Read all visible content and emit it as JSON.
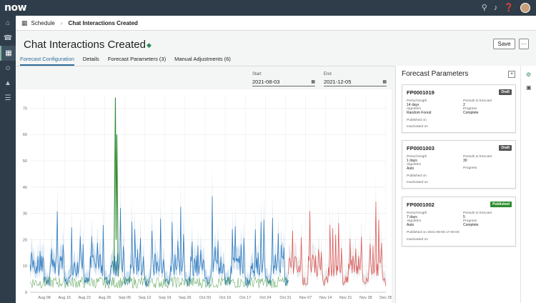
{
  "app": {
    "logo_text": "now"
  },
  "topbar": {
    "icons": [
      "search-icon",
      "bell-icon",
      "help-icon",
      "avatar"
    ]
  },
  "leftnav": {
    "icons": [
      "home-icon",
      "headset-icon",
      "calendar-icon",
      "people-icon",
      "graduation-icon",
      "list-icon"
    ],
    "active_index": 2
  },
  "breadcrumb": {
    "root": "Schedule",
    "current": "Chat Interactions Created"
  },
  "header": {
    "title": "Chat Interactions Created",
    "save_label": "Save",
    "more_label": "···"
  },
  "tabs": [
    {
      "label": "Forecast Configuration",
      "active": true
    },
    {
      "label": "Details",
      "active": false
    },
    {
      "label": "Forecast Parameters (3)",
      "active": false
    },
    {
      "label": "Manual Adjustments (6)",
      "active": false
    }
  ],
  "date_range": {
    "start_label": "Start",
    "start_value": "2021-08-03",
    "end_label": "End",
    "end_value": "2021-12-05"
  },
  "chart_data": {
    "type": "line",
    "title": "",
    "xlabel": "",
    "ylabel": "",
    "ylim": [
      0,
      75
    ],
    "yticks": [
      0,
      10,
      20,
      30,
      40,
      50,
      60,
      70
    ],
    "x_ticks": [
      "Aug 08",
      "Aug 15",
      "Aug 22",
      "Aug 29",
      "Sep 05",
      "Sep 12",
      "Sep 19",
      "Sep 26",
      "Oct 03",
      "Oct 10",
      "Oct 17",
      "Oct 24",
      "Oct 31",
      "Nov 07",
      "Nov 14",
      "Nov 21",
      "Nov 28",
      "Dec 05"
    ],
    "x_range": [
      "2021-08-03",
      "2021-12-05"
    ],
    "grid": true,
    "series": [
      {
        "color": "#2f7bbf",
        "weekly_peaks": [
          30,
          35,
          34,
          38,
          35,
          30,
          37,
          38,
          40,
          37,
          38,
          38,
          37,
          36
        ],
        "baseline": 6
      },
      {
        "color": "#2e8b2e",
        "spike_date": "2021-09-02",
        "spike_value": 74,
        "baseline": 5
      },
      {
        "color": "#e05a5a",
        "weekly_peaks": [
          40,
          40,
          42,
          37,
          40
        ],
        "baseline": 6
      }
    ],
    "band_color": "#a9c9e6"
  },
  "panel": {
    "title": "Forecast Parameters",
    "add_label": "+",
    "cards": [
      {
        "code": "FP0001019",
        "badge": "Draft",
        "badge_color": "#555555",
        "period_length_label": "Period length",
        "period_length": "14 days",
        "periods_label": "Periods to forecast",
        "periods": "2",
        "algorithm_label": "Algorithm",
        "algorithm": "Random Forest",
        "progress_label": "Progress",
        "progress": "Complete",
        "published_label": "Published on",
        "published": "",
        "inactivated_label": "Inactivated on",
        "inactivated": ""
      },
      {
        "code": "FP0001003",
        "badge": "Draft",
        "badge_color": "#555555",
        "period_length_label": "Period length",
        "period_length": "1 days",
        "periods_label": "Periods to forecast",
        "periods": "30",
        "algorithm_label": "Algorithm",
        "algorithm": "Auto",
        "progress_label": "Progress",
        "progress": "",
        "published_label": "Published on",
        "published": "",
        "inactivated_label": "Inactivated on",
        "inactivated": ""
      },
      {
        "code": "FP0001002",
        "badge": "Published",
        "badge_color": "#2e8b2e",
        "period_length_label": "Period length",
        "period_length": "7 days",
        "periods_label": "Periods to forecast",
        "periods": "5",
        "algorithm_label": "Algorithm",
        "algorithm": "Auto",
        "progress_label": "Progress",
        "progress": "Complete",
        "published_label": "Published on",
        "published": "2021-08-06 17:00:00",
        "inactivated_label": "Inactivated on",
        "inactivated": ""
      }
    ]
  }
}
